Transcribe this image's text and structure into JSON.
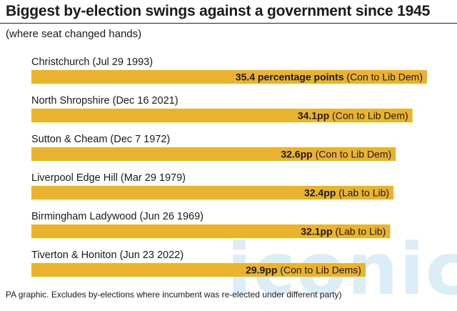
{
  "title": "Biggest by-election swings against a government since 1945",
  "subtitle": "(where seat changed hands)",
  "footnote": "PA graphic. Excludes by-elections where incumbent was re-elected under different party)",
  "watermark": "iconic",
  "colors": {
    "bar": "#eab32f",
    "text": "#1a1a1a",
    "watermark": "#bfe1f2"
  },
  "chart_data": {
    "type": "bar",
    "orientation": "horizontal",
    "categories": [
      "Christchurch (Jul 29 1993)",
      "North Shropshire (Dec 16 2021)",
      "Sutton & Cheam (Dec 7 1972)",
      "Liverpool Edge Hill (Mar 29 1979)",
      "Birmingham Ladywood (Jun 26 1969)",
      "Tiverton & Honiton (Jun 23 2022)"
    ],
    "values": [
      35.4,
      34.1,
      32.6,
      32.4,
      32.1,
      29.9
    ],
    "value_labels": [
      "35.4 percentage points",
      "34.1pp",
      "32.6pp",
      "32.4pp",
      "32.1pp",
      "29.9pp"
    ],
    "detail_labels": [
      "(Con to Lib Dem)",
      "(Con to Lib Dem)",
      "(Con to Lib Dem)",
      "(Lab to Lib)",
      "(Lab to Lib)",
      "(Con to Lib Dems)"
    ],
    "xlim": [
      0,
      35.4
    ],
    "grid": false,
    "legend": "none"
  }
}
